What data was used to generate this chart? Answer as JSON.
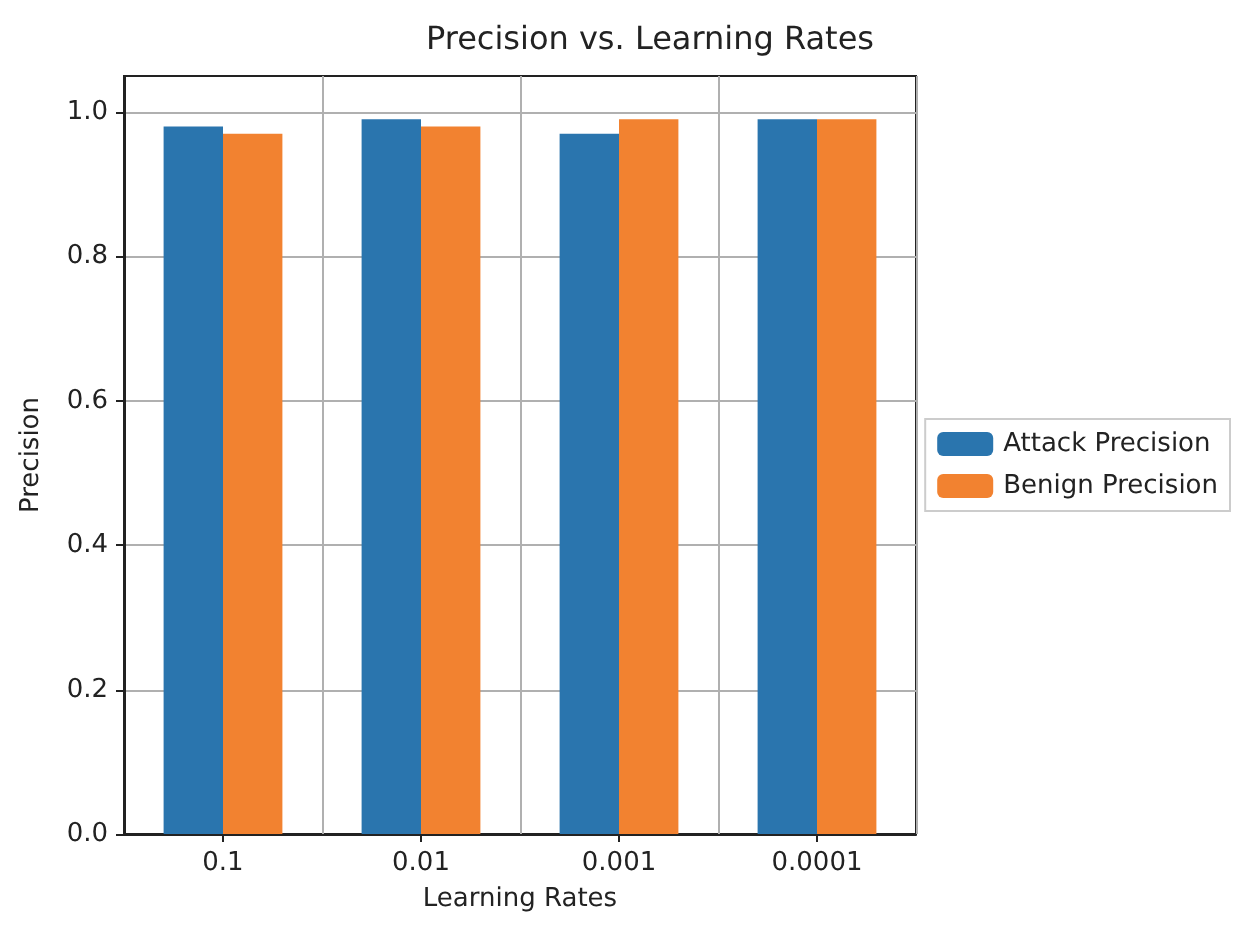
{
  "chart_data": {
    "type": "bar",
    "title": "Precision vs. Learning Rates",
    "xlabel": "Learning Rates",
    "ylabel": "Precision",
    "categories": [
      "0.1",
      "0.01",
      "0.001",
      "0.0001"
    ],
    "series": [
      {
        "name": "Attack Precision",
        "color": "#2a75ae",
        "values": [
          0.98,
          0.99,
          0.97,
          0.99
        ]
      },
      {
        "name": "Benign Precision",
        "color": "#f28230",
        "values": [
          0.97,
          0.98,
          0.99,
          0.99
        ]
      }
    ],
    "ylim": [
      0,
      1.05
    ],
    "yticks": [
      {
        "value": 0,
        "label": "0.0"
      },
      {
        "value": 0.2,
        "label": "0.2"
      },
      {
        "value": 0.4,
        "label": "0.4"
      },
      {
        "value": 0.6,
        "label": "0.6"
      },
      {
        "value": 0.8,
        "label": "0.8"
      },
      {
        "value": 1,
        "label": "1.0"
      }
    ],
    "grid": true,
    "legend": "right"
  }
}
